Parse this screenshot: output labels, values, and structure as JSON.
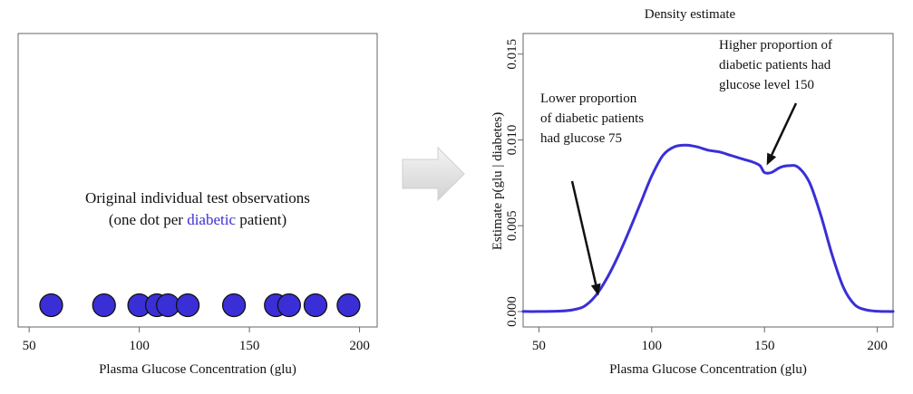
{
  "chart_data": [
    {
      "type": "scatter",
      "xlabel": "Plasma Glucose Concentration (glu)",
      "ylabel": "",
      "xlim": [
        45,
        208
      ],
      "xticks": [
        50,
        100,
        150,
        200
      ],
      "x": [
        60,
        84,
        100,
        108,
        113,
        122,
        143,
        162,
        168,
        180,
        195
      ],
      "annotation": {
        "line1": "Original individual test observations",
        "line2_prefix": "(one dot per ",
        "line2_highlight": "diabetic",
        "line2_suffix": " patient)"
      },
      "point_color": "#3a2fd6",
      "highlight_color": "#3a2fd6"
    },
    {
      "type": "line",
      "title": "Density estimate",
      "xlabel": "Plasma Glucose Concentration (glu)",
      "ylabel": "Estimate  p(glu | diabetes)",
      "xlim": [
        43,
        207
      ],
      "ylim": [
        -0.0009,
        0.0162
      ],
      "xticks": [
        50,
        100,
        150,
        200
      ],
      "yticks": [
        "0.000",
        "0.005",
        "0.010",
        "0.015"
      ],
      "series": [
        {
          "color": "#3a2fd6",
          "x": [
            43,
            50,
            60,
            65,
            70,
            75,
            80,
            85,
            90,
            95,
            100,
            105,
            110,
            115,
            120,
            125,
            130,
            135,
            140,
            145,
            148,
            150,
            153,
            157,
            161,
            165,
            170,
            175,
            180,
            185,
            190,
            195,
            200,
            205,
            207
          ],
          "y": [
            0.0,
            0.0,
            3e-05,
            0.0001,
            0.0003,
            0.0009,
            0.0019,
            0.0032,
            0.0047,
            0.0063,
            0.0079,
            0.0091,
            0.0096,
            0.0097,
            0.0096,
            0.0094,
            0.0093,
            0.0091,
            0.0089,
            0.0087,
            0.0085,
            0.0081,
            0.0081,
            0.0084,
            0.0085,
            0.0084,
            0.0075,
            0.0056,
            0.0033,
            0.0014,
            0.0004,
            0.0001,
            2e-05,
            0.0,
            0.0
          ]
        }
      ],
      "annotations": [
        {
          "lines": [
            "Lower proportion",
            "of diabetic patients",
            "had  glucose 75"
          ],
          "target": [
            76,
            0.0007
          ]
        },
        {
          "lines": [
            "Higher proportion of",
            "diabetic patients had",
            "glucose level 150"
          ],
          "target": [
            153,
            0.0083
          ]
        }
      ]
    }
  ]
}
